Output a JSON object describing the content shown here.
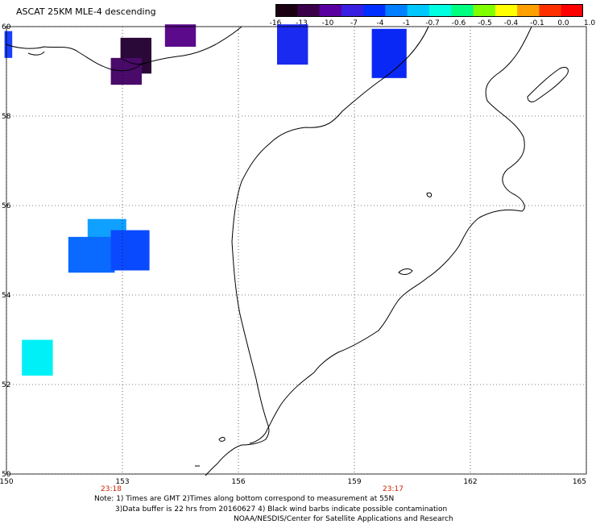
{
  "title": "ASCAT 25KM MLE-4 descending",
  "colorbar": {
    "labels": [
      "-16",
      "-13",
      "-10",
      "-7",
      "-4",
      "-1",
      "-0.7",
      "-0.6",
      "-0.5",
      "-0.4",
      "-0.1",
      "0.0",
      "1.0"
    ],
    "colors": [
      "#1a0010",
      "#3a004a",
      "#5a00a0",
      "#3a20e0",
      "#0030ff",
      "#0080ff",
      "#00c8ff",
      "#00ffe0",
      "#00ff80",
      "#80ff00",
      "#ffff00",
      "#ffa000",
      "#ff3000",
      "#ff0000"
    ]
  },
  "map": {
    "lat_labels": [
      "60",
      "58",
      "56",
      "54",
      "52",
      "50"
    ],
    "lon_labels": [
      "150",
      "153",
      "156",
      "159",
      "162",
      "165"
    ],
    "time_labels": [
      "23:18",
      "23:17"
    ],
    "cells": [
      {
        "lon": 150.05,
        "lat": 59.6,
        "color": "#1a40ff",
        "w": 0.2,
        "h": 0.6
      },
      {
        "lon": 154.5,
        "lat": 59.8,
        "color": "#5a0a8a",
        "w": 0.8,
        "h": 0.5
      },
      {
        "lon": 153.35,
        "lat": 59.35,
        "color": "#2a0838",
        "w": 0.8,
        "h": 0.8
      },
      {
        "lon": 153.1,
        "lat": 59.0,
        "color": "#4a0a6a",
        "w": 0.8,
        "h": 0.6
      },
      {
        "lon": 157.4,
        "lat": 59.6,
        "color": "#1a2af0",
        "w": 0.8,
        "h": 0.9
      },
      {
        "lon": 159.9,
        "lat": 59.4,
        "color": "#0a28f5",
        "w": 0.9,
        "h": 1.1
      },
      {
        "lon": 152.6,
        "lat": 55.4,
        "color": "#10a0ff",
        "w": 1.0,
        "h": 0.6
      },
      {
        "lon": 152.2,
        "lat": 54.9,
        "color": "#0a6aff",
        "w": 1.2,
        "h": 0.8
      },
      {
        "lon": 153.2,
        "lat": 55.0,
        "color": "#0a4aff",
        "w": 1.0,
        "h": 0.9
      },
      {
        "lon": 150.8,
        "lat": 52.6,
        "color": "#00f0f8",
        "w": 0.8,
        "h": 0.8
      }
    ]
  },
  "notes": {
    "line1": "Note: 1) Times are GMT 2)Times along bottom correspond to measurement at 55N",
    "line2": "3)Data buffer is 22 hrs from 20160627 4) Black wind barbs indicate possible contamination",
    "line3": "NOAA/NESDIS/Center for Satellite Applications and Research"
  }
}
